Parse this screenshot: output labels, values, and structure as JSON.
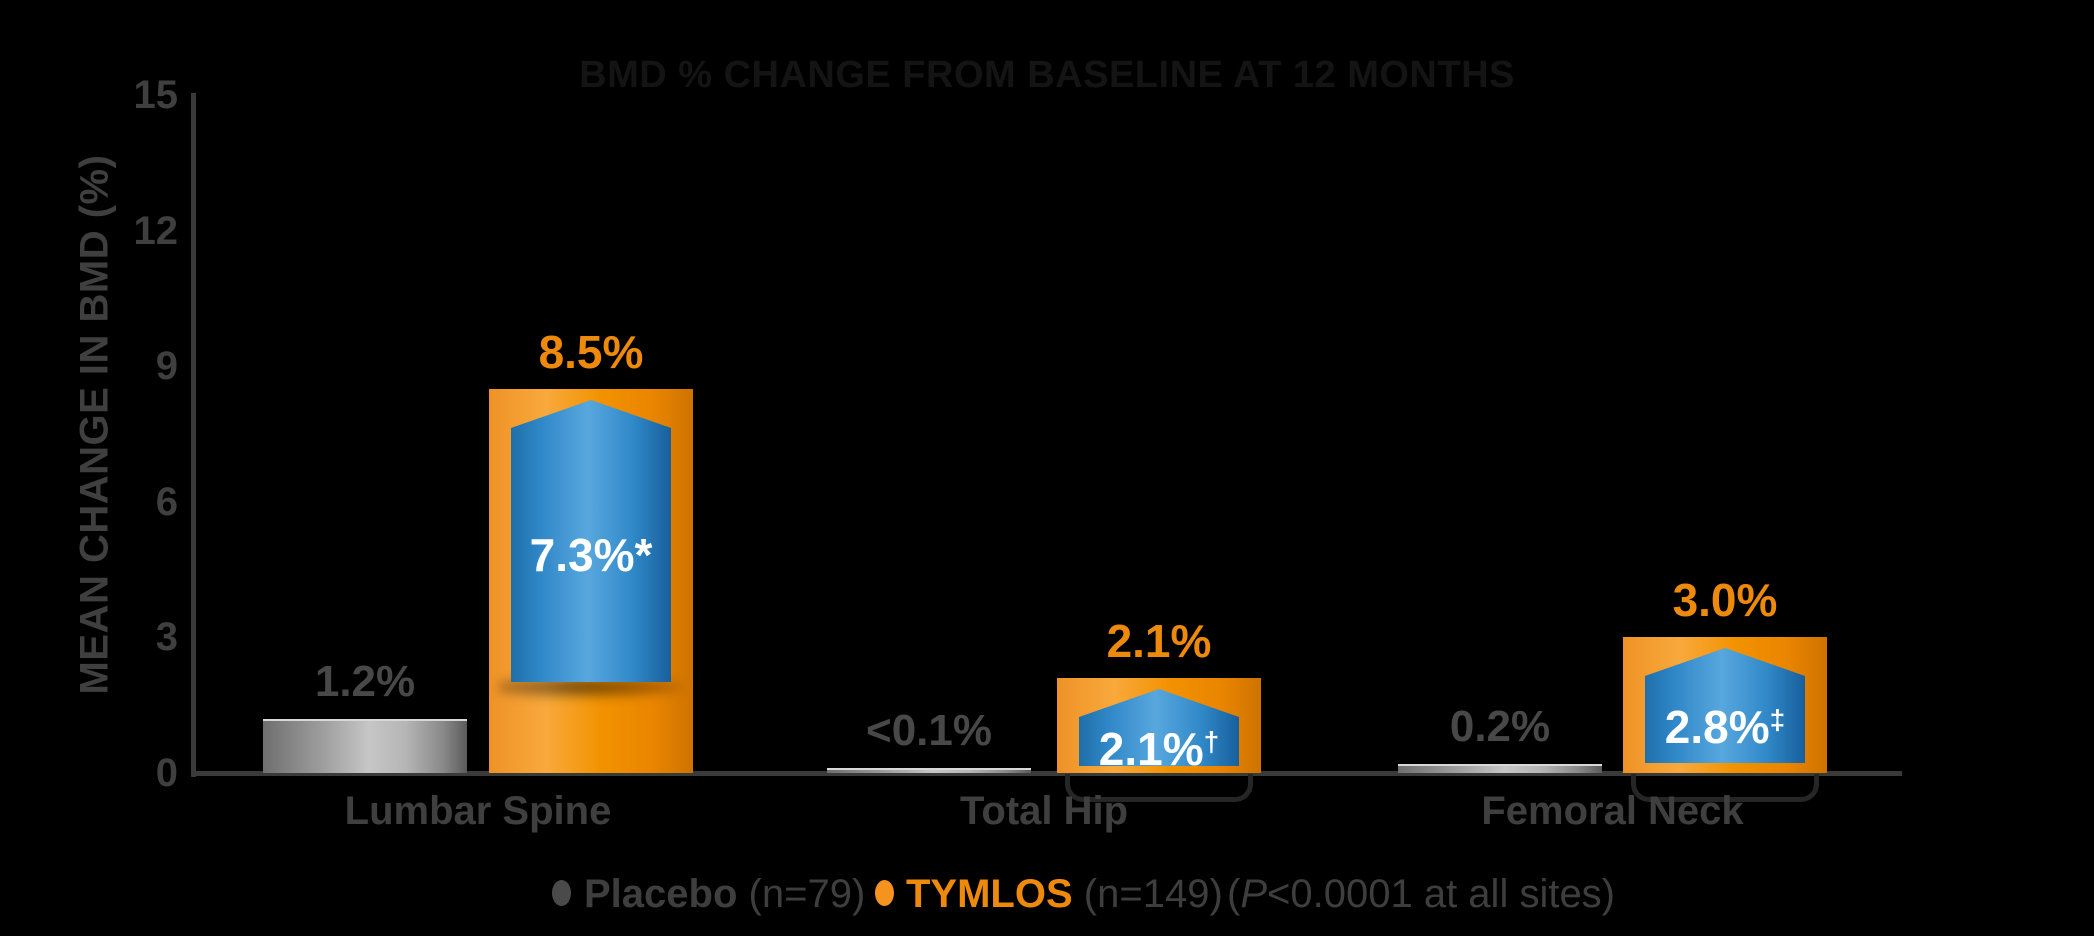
{
  "title": "BMD % CHANGE FROM BASELINE AT 12 MONTHS",
  "colors": {
    "background": "#000000",
    "axis": "#3a3a3a",
    "gray_text": "#3f3f3f",
    "placebo_gray": "#9f9f9f",
    "tymlos_orange": "#f29200",
    "orange_label": "#ee8a0b",
    "arrow_blue": "#2f87c7",
    "arrow_text": "#ffffff"
  },
  "chart_data": {
    "type": "bar",
    "title": "BMD % CHANGE FROM BASELINE AT 12 MONTHS",
    "xlabel": "",
    "ylabel": "MEAN CHANGE IN BMD (%)",
    "ylim": [
      0,
      15
    ],
    "yticks": [
      15,
      12,
      9,
      6,
      3,
      0
    ],
    "grid": false,
    "legend_position": "bottom",
    "categories": [
      "Lumbar Spine",
      "Total Hip",
      "Femoral Neck"
    ],
    "series": [
      {
        "name": "Placebo",
        "n_label": "(n=79)",
        "values": [
          1.2,
          0.1,
          0.2
        ],
        "value_labels": [
          "1.2%",
          "<0.1%",
          "0.2%"
        ]
      },
      {
        "name": "TYMLOS",
        "n_label": "(n=149)",
        "values": [
          8.5,
          2.1,
          3.0
        ],
        "value_labels": [
          "8.5%",
          "2.1%",
          "3.0%"
        ]
      }
    ],
    "treatment_differences": [
      {
        "label": "7.3%*",
        "sup": ""
      },
      {
        "label": "2.1%",
        "sup": "†"
      },
      {
        "label": "2.8%",
        "sup": "‡"
      }
    ],
    "note": "(P<0.0001 at all sites)"
  },
  "legend": {
    "placebo_name": "Placebo",
    "placebo_n": "(n=79)",
    "tymlos_name": "TYMLOS",
    "tymlos_n": "(n=149)",
    "note_open": "(",
    "note_italic": "P",
    "note_rest": "<0.0001 at all sites)"
  }
}
